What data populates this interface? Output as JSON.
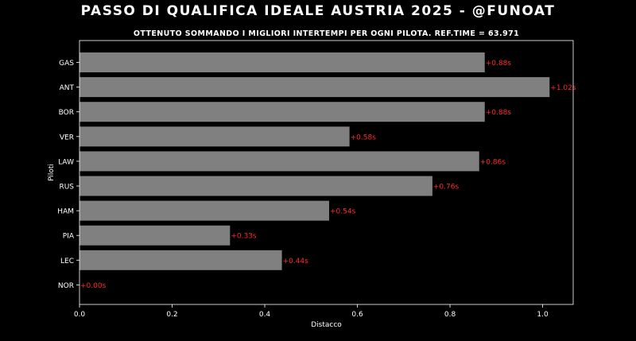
{
  "title": "PASSO DI QUALIFICA IDEALE AUSTRIA 2025 - @FUNOAT",
  "subtitle": "OTTENUTO SOMMANDO I MIGLIORI INTERTEMPI PER OGNI PILOTA. REF.TIME = 63.971",
  "chart_data": {
    "type": "bar",
    "orientation": "horizontal",
    "categories": [
      "GAS",
      "ANT",
      "BOR",
      "VER",
      "LAW",
      "RUS",
      "HAM",
      "PIA",
      "LEC",
      "NOR"
    ],
    "values": [
      0.875,
      1.015,
      0.875,
      0.583,
      0.863,
      0.762,
      0.539,
      0.325,
      0.437,
      0.0
    ],
    "data_labels": [
      "+0.88s",
      "+1.02s",
      "+0.88s",
      "+0.58s",
      "+0.86s",
      "+0.76s",
      "+0.54s",
      "+0.33s",
      "+0.44s",
      "+0.00s"
    ],
    "xlabel": "Distacco",
    "ylabel": "Piloti",
    "xlim": [
      0,
      1.066
    ],
    "xticks": [
      0.0,
      0.2,
      0.4,
      0.6,
      0.8,
      1.0
    ],
    "xtick_labels": [
      "0.0",
      "0.2",
      "0.4",
      "0.6",
      "0.8",
      "1.0"
    ],
    "grid": false,
    "colors": {
      "bar": "#808080",
      "label": "#ff2a2a",
      "axis": "#ffffff",
      "background": "#000000"
    }
  }
}
